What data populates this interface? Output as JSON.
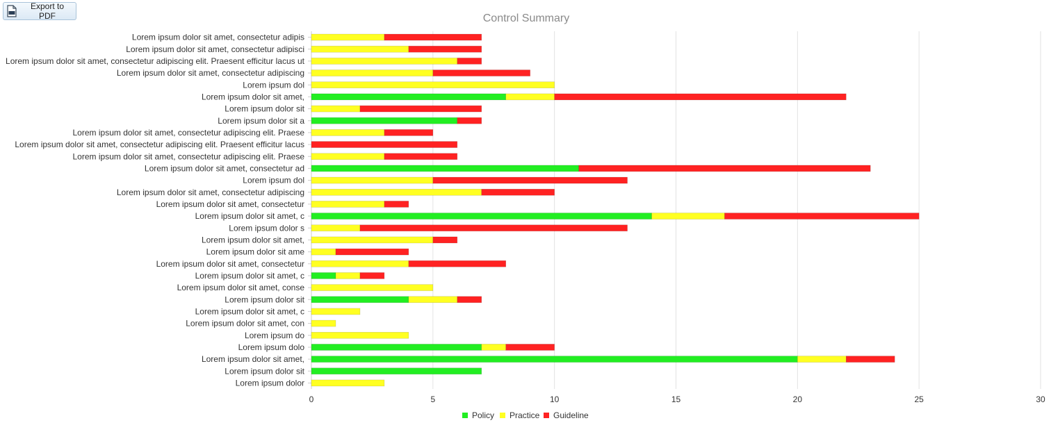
{
  "toolbar": {
    "export_label": "Export to PDF",
    "export_icon": "pdf-file-icon"
  },
  "chart_data": {
    "type": "bar",
    "orientation": "horizontal",
    "stacked": true,
    "title": "Control Summary",
    "xlim": [
      0,
      30
    ],
    "xticks": [
      0,
      5,
      10,
      15,
      20,
      25,
      30
    ],
    "grid": true,
    "legend_position": "bottom-center",
    "categories": [
      "Lorem ipsum dolor sit amet, consectetur adipis",
      "Lorem ipsum dolor sit amet, consectetur adipisci",
      "Lorem ipsum dolor sit amet, consectetur adipiscing elit. Praesent efficitur lacus ut",
      "Lorem ipsum dolor sit amet, consectetur adipiscing",
      "Lorem ipsum dol",
      "Lorem ipsum dolor sit amet,",
      "Lorem ipsum dolor sit",
      "Lorem ipsum dolor sit a",
      "Lorem ipsum dolor sit amet, consectetur adipiscing elit. Praese",
      "Lorem ipsum dolor sit amet, consectetur adipiscing elit. Praesent efficitur lacus",
      "Lorem ipsum dolor sit amet, consectetur adipiscing elit. Praese",
      "Lorem ipsum dolor sit amet, consectetur ad",
      "Lorem ipsum dol",
      "Lorem ipsum dolor sit amet, consectetur adipiscing",
      "Lorem ipsum dolor sit amet, consectetur",
      "Lorem ipsum dolor sit amet, c",
      "Lorem ipsum dolor s",
      "Lorem ipsum dolor sit amet,",
      "Lorem ipsum dolor sit ame",
      "Lorem ipsum dolor sit amet, consectetur",
      "Lorem ipsum dolor sit amet, c",
      "Lorem ipsum dolor sit amet, conse",
      "Lorem ipsum dolor sit",
      "Lorem ipsum dolor sit amet, c",
      "Lorem ipsum dolor sit amet, con",
      "Lorem ipsum do",
      "Lorem ipsum dolo",
      "Lorem ipsum dolor sit amet,",
      "Lorem ipsum dolor sit",
      "Lorem ipsum dolor"
    ],
    "series": [
      {
        "name": "Policy",
        "color": "#22ee22",
        "values": [
          0,
          0,
          0,
          0,
          0,
          8,
          0,
          6,
          0,
          0,
          0,
          11,
          0,
          0,
          0,
          14,
          0,
          0,
          0,
          0,
          1,
          0,
          4,
          0,
          0,
          0,
          7,
          20,
          7,
          0
        ]
      },
      {
        "name": "Practice",
        "color": "#ffff22",
        "values": [
          3,
          4,
          6,
          5,
          10,
          2,
          2,
          0,
          3,
          0,
          3,
          0,
          5,
          7,
          3,
          3,
          2,
          5,
          1,
          4,
          1,
          5,
          2,
          2,
          1,
          4,
          1,
          2,
          0,
          3
        ]
      },
      {
        "name": "Guideline",
        "color": "#ff2222",
        "values": [
          4,
          3,
          1,
          4,
          0,
          12,
          5,
          1,
          2,
          6,
          3,
          12,
          8,
          3,
          1,
          8,
          11,
          1,
          3,
          4,
          1,
          0,
          1,
          0,
          0,
          0,
          2,
          2,
          0,
          0
        ]
      }
    ]
  }
}
